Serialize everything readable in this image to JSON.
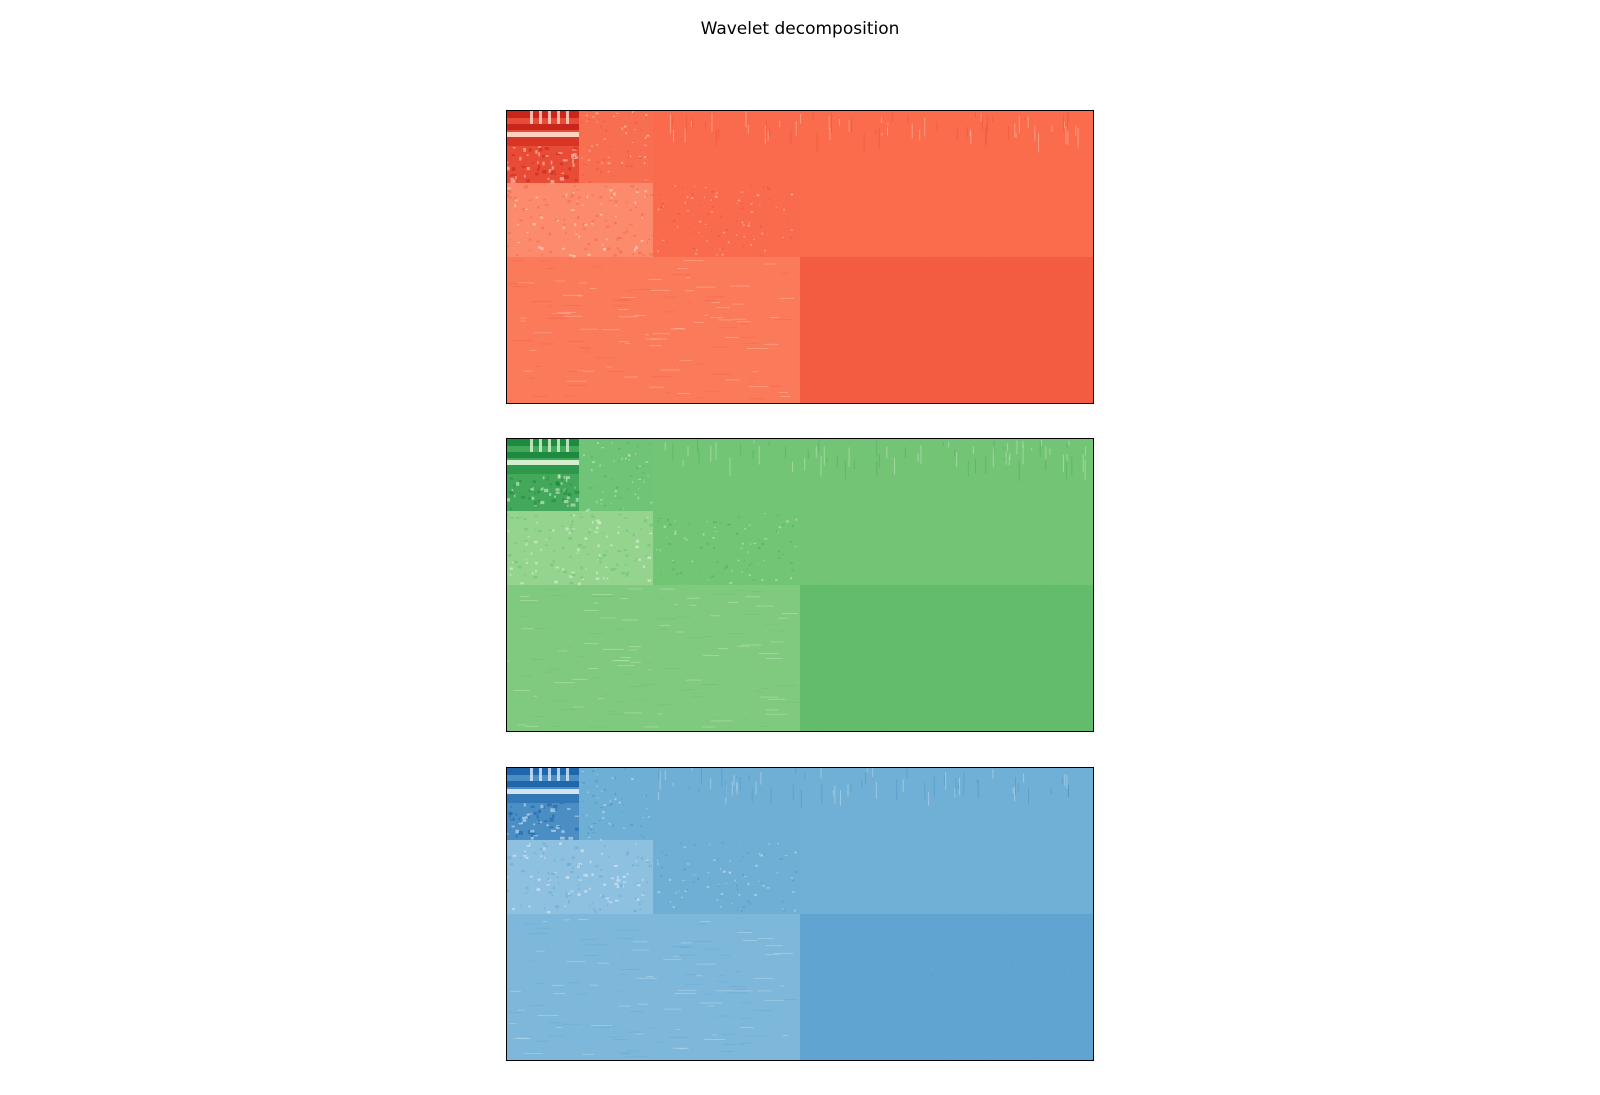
{
  "title": "Wavelet decomposition",
  "chart_data": {
    "type": "heatmap",
    "title": "Wavelet decomposition",
    "xlabel": "",
    "ylabel": "",
    "grid": false,
    "axis_ticks": false,
    "levels": 3,
    "layout": "standard 2D wavelet decomposition mosaic: approximation in top-left, horizontal / vertical / diagonal detail sub-bands arranged in quadrants, nested for 3 levels",
    "panels": [
      {
        "channel": "red",
        "colormap": "Reds",
        "palette": {
          "approx_dark": "#c8251c",
          "approx_mid": "#e84c36",
          "approx_light": "#fcd2c1",
          "detail_level3": "#f86e50",
          "detail_level2_light": "#fc8a6d",
          "detail_level2": "#f96b4c",
          "detail_level1_light": "#fb7a5a",
          "detail_level1_diag": "#f45c42",
          "background": "#fb6c4d"
        }
      },
      {
        "channel": "green",
        "colormap": "Greens",
        "palette": {
          "approx_dark": "#1e8a3f",
          "approx_mid": "#43a85a",
          "approx_light": "#d3efcf",
          "detail_level3": "#70c478",
          "detail_level2_light": "#95d48f",
          "detail_level2": "#73c576",
          "detail_level1_light": "#80ca7f",
          "detail_level1_diag": "#63bc6c",
          "background": "#74c476"
        }
      },
      {
        "channel": "blue",
        "colormap": "Blues",
        "palette": {
          "approx_dark": "#1f66ac",
          "approx_mid": "#4a8ec4",
          "approx_light": "#d2e4f2",
          "detail_level3": "#6eafd6",
          "detail_level2_light": "#8ec0df",
          "detail_level2": "#6fafd5",
          "detail_level1_light": "#7db8da",
          "detail_level1_diag": "#60a5d1",
          "background": "#70b0d6"
        }
      }
    ]
  }
}
